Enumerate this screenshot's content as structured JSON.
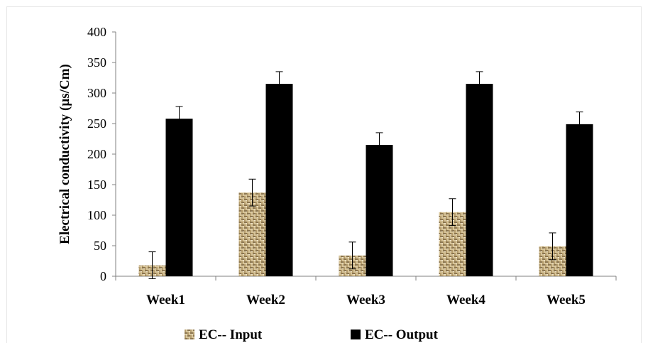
{
  "chart_data": {
    "type": "bar",
    "title": "",
    "xlabel": "",
    "ylabel": "Electrical conductivity (µs/Cm)",
    "categories": [
      "Week1",
      "Week2",
      "Week3",
      "Week4",
      "Week5"
    ],
    "ylim": [
      0,
      400
    ],
    "yticks": [
      0,
      50,
      100,
      150,
      200,
      250,
      300,
      350,
      400
    ],
    "grid": false,
    "legend_position": "bottom",
    "series": [
      {
        "name": "EC-- Input",
        "values": [
          18,
          137,
          34,
          105,
          49
        ],
        "error": [
          22,
          22,
          22,
          22,
          22
        ],
        "color": "#cdb88a",
        "pattern": "woven-texture"
      },
      {
        "name": "EC-- Output",
        "values": [
          258,
          315,
          215,
          315,
          249
        ],
        "error": [
          20,
          20,
          20,
          20,
          20
        ],
        "color": "#000000"
      }
    ]
  }
}
